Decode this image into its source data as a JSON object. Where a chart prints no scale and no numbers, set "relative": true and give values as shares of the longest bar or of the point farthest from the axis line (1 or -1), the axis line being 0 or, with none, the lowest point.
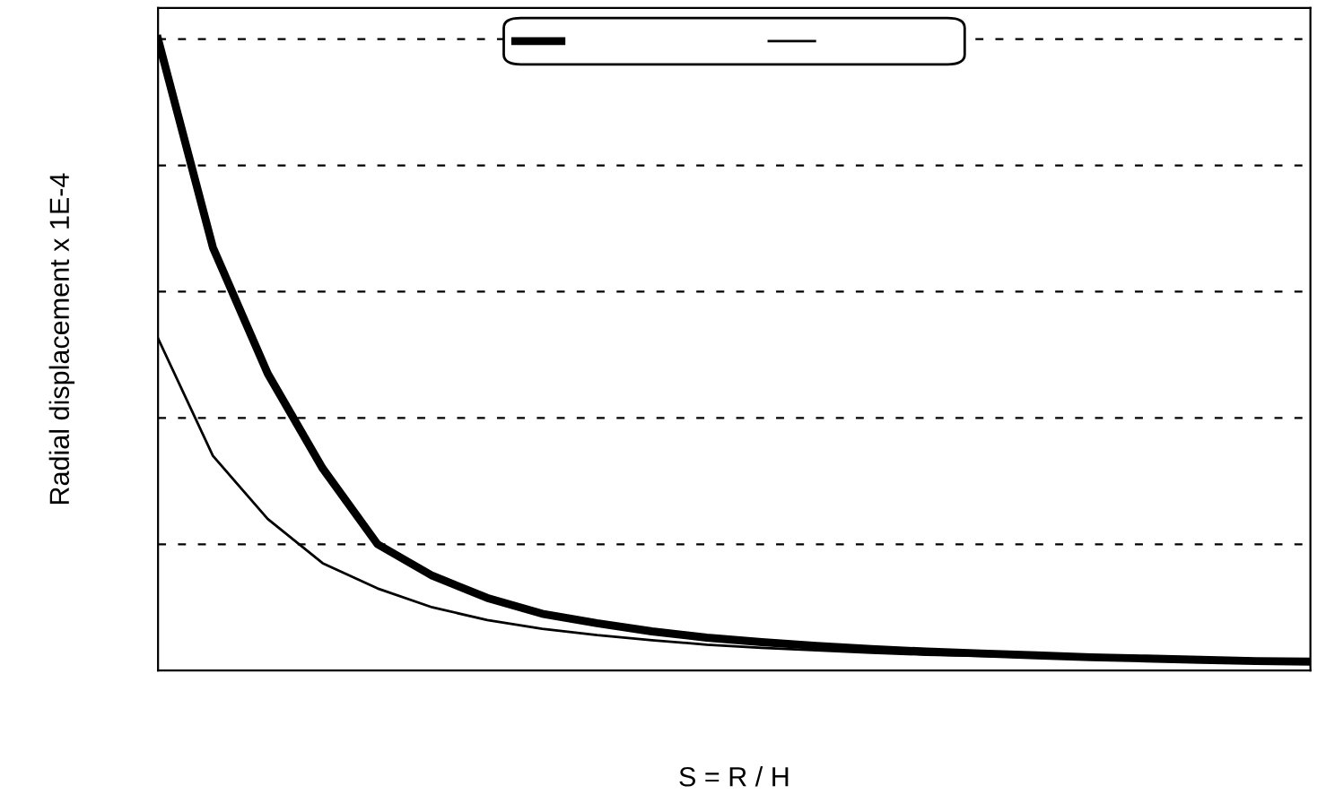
{
  "chart_data": {
    "type": "line",
    "xlabel": "S = R / H",
    "ylabel": "Radial displacement x 1E-4",
    "relative": true,
    "grid": "y",
    "line_style": "solid",
    "marker": "none",
    "categories": [
      null,
      null,
      null,
      null,
      null,
      null,
      null,
      null,
      null,
      null,
      null,
      null,
      null,
      null,
      null,
      null,
      null,
      null,
      null,
      null,
      null,
      null
    ],
    "series": [
      {
        "color": "#000000",
        "values": [
          1.0,
          0.67,
          0.47,
          0.32,
          0.2,
          0.15,
          0.115,
          0.09,
          0.075,
          0.062,
          0.052,
          0.045,
          0.039,
          0.034,
          0.03,
          0.027,
          0.024,
          0.021,
          0.019,
          0.017,
          0.015,
          0.014
        ]
      },
      {
        "color": "#000000",
        "values": [
          0.526,
          0.34,
          0.24,
          0.17,
          0.13,
          0.1,
          0.08,
          0.066,
          0.056,
          0.048,
          0.041,
          0.036,
          0.032,
          0.028,
          0.025,
          0.023,
          0.021,
          0.019,
          0.017,
          0.016,
          0.015,
          0.014
        ]
      }
    ]
  }
}
